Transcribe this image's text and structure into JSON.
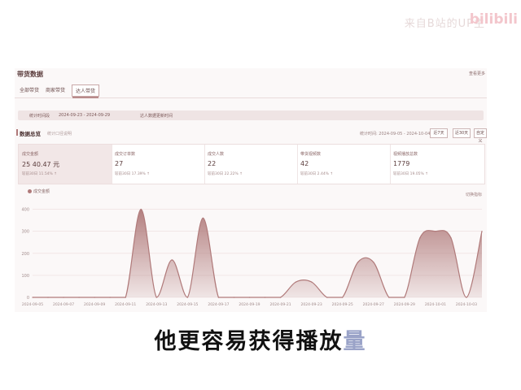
{
  "overlay": {
    "watermark": "来自B站的UP主",
    "logo": "bilibili"
  },
  "panel": {
    "title": "带货数据",
    "top_right_link": "查看更多"
  },
  "tabs": [
    {
      "label": "全部带货"
    },
    {
      "label": "商家带货"
    },
    {
      "label": "达人带货"
    }
  ],
  "date_bar": {
    "label": "统计时间段",
    "range": "2024-09-23 - 2024-09-29",
    "note": "达人数据更新时间"
  },
  "overview": {
    "title": "数据总览",
    "subtitle": "统计口径说明",
    "date_label": "统计时间: 2024-09-05 - 2024-10-04",
    "buttons": [
      "近7天",
      "近30天",
      "自定义"
    ]
  },
  "metrics": [
    {
      "label": "成交金额",
      "value": "25 40.47 元",
      "compare": "较前30日 11.54% ↑"
    },
    {
      "label": "成交订单数",
      "value": "27",
      "compare": "较前30日 17.39% ↑"
    },
    {
      "label": "成交人数",
      "value": "22",
      "compare": "较前30日 22.22% ↑"
    },
    {
      "label": "带货视频数",
      "value": "42",
      "compare": "较前30日 2.44% ↑"
    },
    {
      "label": "视频播放总数",
      "value": "1779",
      "compare": "较前30日 19.05% ↑"
    }
  ],
  "chart": {
    "legend": "成交金额",
    "link": "切换指标",
    "color": "#b07a7a"
  },
  "chart_data": {
    "type": "area",
    "x": [
      "2024-09-05",
      "2024-09-06",
      "2024-09-07",
      "2024-09-08",
      "2024-09-09",
      "2024-09-10",
      "2024-09-11",
      "2024-09-12",
      "2024-09-13",
      "2024-09-14",
      "2024-09-15",
      "2024-09-16",
      "2024-09-17",
      "2024-09-18",
      "2024-09-19",
      "2024-09-20",
      "2024-09-21",
      "2024-09-22",
      "2024-09-23",
      "2024-09-24",
      "2024-09-25",
      "2024-09-26",
      "2024-09-27",
      "2024-09-28",
      "2024-09-29",
      "2024-09-30",
      "2024-10-01",
      "2024-10-02",
      "2024-10-03",
      "2024-10-04"
    ],
    "x_ticks": [
      "2024-09-05",
      "2024-09-07",
      "2024-09-09",
      "2024-09-11",
      "2024-09-13",
      "2024-09-15",
      "2024-09-17",
      "2024-09-19",
      "2024-09-21",
      "2024-09-23",
      "2024-09-25",
      "2024-09-27",
      "2024-09-29",
      "2024-10-01",
      "2024-10-03"
    ],
    "series": [
      {
        "values": [
          0,
          0,
          0,
          0,
          0,
          0,
          0,
          400,
          0,
          170,
          0,
          360,
          0,
          0,
          0,
          0,
          0,
          70,
          70,
          0,
          0,
          160,
          160,
          0,
          0,
          270,
          300,
          270,
          0,
          300
        ]
      }
    ],
    "yticks": [
      "0",
      "100",
      "200",
      "300",
      "400"
    ],
    "ylim": [
      0,
      450
    ],
    "grid": true
  },
  "caption": {
    "text": "他更容易获得播放",
    "faded": "量"
  }
}
